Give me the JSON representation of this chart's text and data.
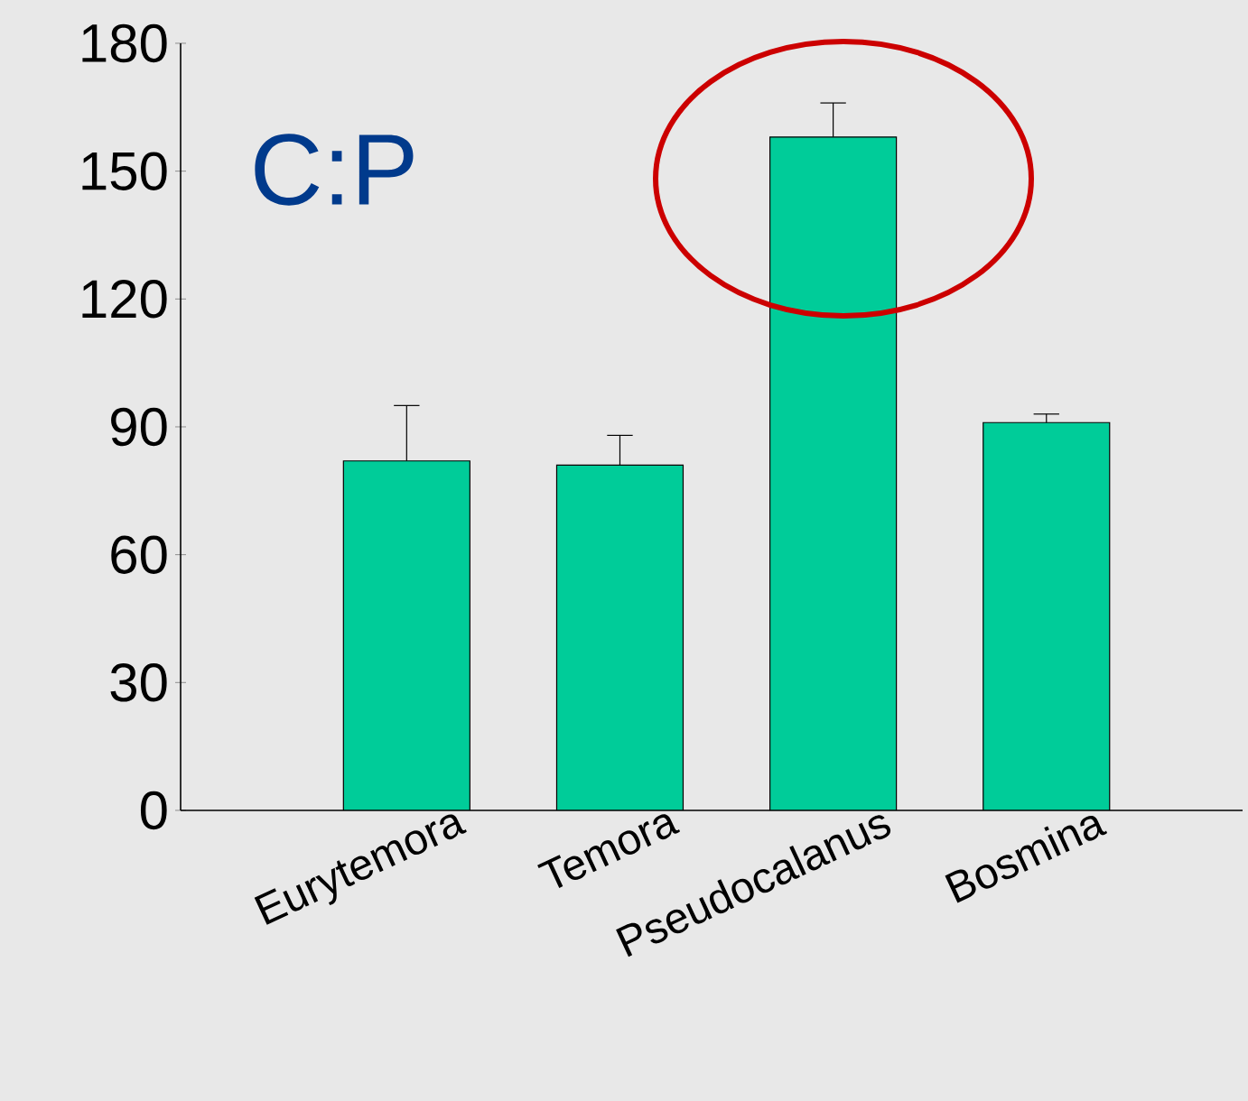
{
  "chart_data": {
    "type": "bar",
    "categories": [
      "Eurytemora",
      "Temora",
      "Pseudocalanus",
      "Bosmina"
    ],
    "values": [
      82,
      81,
      158,
      91
    ],
    "errors": [
      [
        82,
        95
      ],
      [
        81,
        88
      ],
      [
        158,
        166
      ],
      [
        91,
        93
      ]
    ],
    "color": "#00cc99",
    "ylim": [
      0,
      180
    ],
    "yticks": [
      0,
      30,
      60,
      90,
      120,
      150,
      180
    ],
    "annotations": [
      "C:P"
    ],
    "grid": false
  }
}
